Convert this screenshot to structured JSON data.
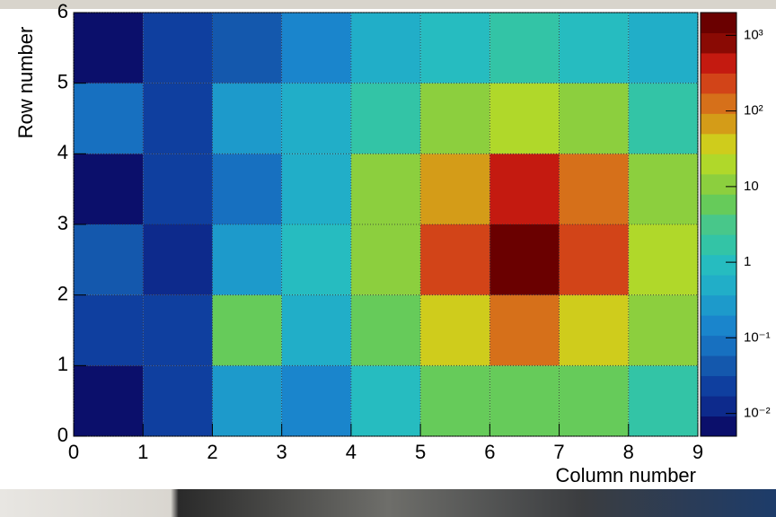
{
  "chart_data": {
    "type": "heatmap",
    "xlabel": "Column number",
    "ylabel": "Row number",
    "xbins": [
      0,
      1,
      2,
      3,
      4,
      5,
      6,
      7,
      8,
      9
    ],
    "ybins": [
      0,
      1,
      2,
      3,
      4,
      5,
      6
    ],
    "z": [
      [
        0.006,
        0.02,
        0.2,
        0.15,
        1,
        5,
        6,
        5,
        1.5
      ],
      [
        0.03,
        0.025,
        5,
        0.4,
        5,
        30,
        150,
        30,
        10
      ],
      [
        0.05,
        0.012,
        0.2,
        0.8,
        8,
        300,
        2000,
        300,
        15
      ],
      [
        0.006,
        0.02,
        0.1,
        0.5,
        10,
        60,
        500,
        150,
        8
      ],
      [
        0.1,
        0.02,
        0.2,
        0.4,
        2,
        8,
        15,
        8,
        2
      ],
      [
        0.006,
        0.03,
        0.04,
        0.15,
        0.5,
        1,
        2,
        1,
        0.5
      ]
    ],
    "xlim": [
      0,
      9
    ],
    "ylim": [
      0,
      6
    ],
    "xticks": [
      0,
      1,
      2,
      3,
      4,
      5,
      6,
      7,
      8,
      9
    ],
    "yticks": [
      0,
      1,
      2,
      3,
      4,
      5,
      6
    ],
    "zlim": [
      0.005,
      2000
    ],
    "zscale": "log",
    "zticks": [
      {
        "value": 0.01,
        "label": "10⁻²"
      },
      {
        "value": 0.1,
        "label": "10⁻¹"
      },
      1,
      10,
      {
        "value": 100,
        "label": "10²"
      },
      {
        "value": 1000,
        "label": "10³"
      }
    ],
    "grid": true,
    "colormap": [
      "#0b0f6b",
      "#0d2a8c",
      "#0f3f9f",
      "#1458ad",
      "#1770c0",
      "#1a85cc",
      "#1d9acb",
      "#21aec8",
      "#26bcc0",
      "#33c4a6",
      "#48c78a",
      "#66cb5a",
      "#8ccf3e",
      "#b0d82a",
      "#cfcc1c",
      "#d49c18",
      "#d6701a",
      "#d24418",
      "#c41a10",
      "#8a0a04",
      "#6a0000"
    ]
  }
}
